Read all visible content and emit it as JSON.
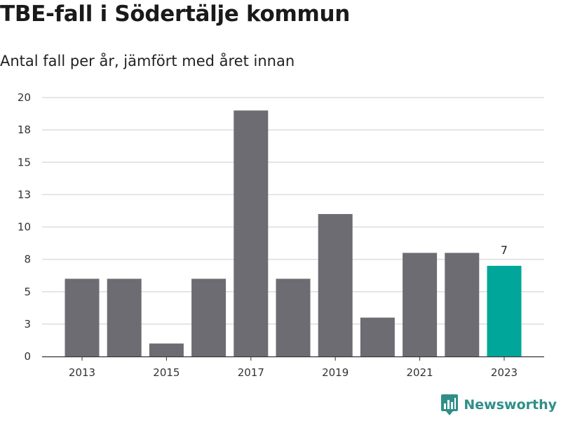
{
  "title": "TBE-fall i Södertälje kommun",
  "subtitle": "Antal fall per år, jämfört med året innan",
  "brand": {
    "name": "Newsworthy",
    "icon": "bar-chart-logo-icon",
    "color": "#2f8f88"
  },
  "chart_data": {
    "type": "bar",
    "title": "TBE-fall i Södertälje kommun",
    "subtitle": "Antal fall per år, jämfört med året innan",
    "categories": [
      "2013",
      "2014",
      "2015",
      "2016",
      "2017",
      "2018",
      "2019",
      "2020",
      "2021",
      "2022",
      "2023"
    ],
    "values": [
      6,
      6,
      1,
      6,
      19,
      6,
      11,
      3,
      8,
      8,
      7
    ],
    "xtick_labels": [
      "2013",
      "2015",
      "2017",
      "2019",
      "2021",
      "2023"
    ],
    "ytick_values": [
      0,
      2.5,
      5,
      7.5,
      10,
      12.5,
      15,
      17.5,
      20
    ],
    "ytick_labels": [
      "0",
      "3",
      "5",
      "8",
      "10",
      "13",
      "15",
      "18",
      "20"
    ],
    "ylim": [
      0,
      20
    ],
    "xlabel": "",
    "ylabel": "",
    "grid": "horizontal",
    "colors": {
      "bar": "#6d6c72",
      "highlight": "#00a699",
      "grid": "#dddddd"
    },
    "highlight_index": 10,
    "data_labels": [
      {
        "index": 10,
        "text": "7"
      }
    ]
  }
}
